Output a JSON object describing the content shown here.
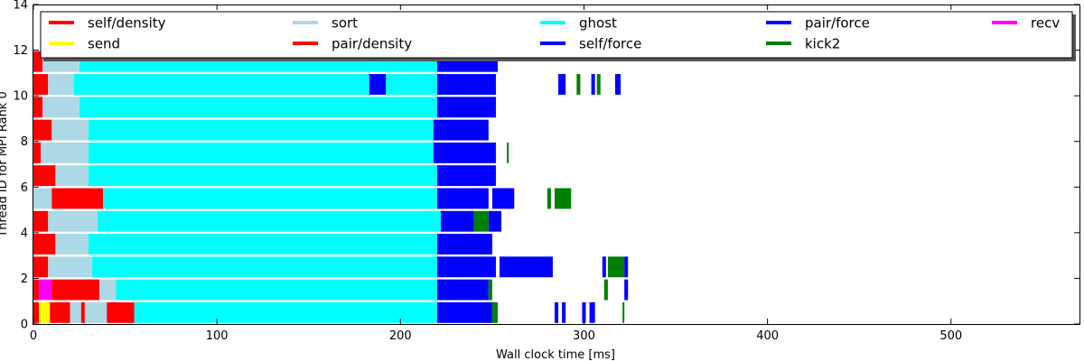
{
  "chart_data": {
    "type": "bar",
    "subtype": "task-timeline",
    "title": "",
    "xlabel": "Wall clock time [ms]",
    "ylabel": "Thread ID for MPI Rank 0",
    "xlim": [
      0,
      570
    ],
    "ylim": [
      0,
      14
    ],
    "xticks": [
      0,
      100,
      200,
      300,
      400,
      500
    ],
    "yticks": [
      0,
      2,
      4,
      6,
      8,
      10,
      12,
      14
    ],
    "grid": false,
    "legend_position": "top",
    "legend": [
      {
        "key": "self_density",
        "name": "self/density",
        "color": "#ff0000"
      },
      {
        "key": "sort",
        "name": "sort",
        "color": "#add8e6"
      },
      {
        "key": "ghost",
        "name": "ghost",
        "color": "#00ffff"
      },
      {
        "key": "pair_force",
        "name": "pair/force",
        "color": "#0000ff"
      },
      {
        "key": "recv",
        "name": "recv",
        "color": "#ff00ff"
      },
      {
        "key": "send",
        "name": "send",
        "color": "#ffff00"
      },
      {
        "key": "pair_density",
        "name": "pair/density",
        "color": "#ff0000"
      },
      {
        "key": "self_force",
        "name": "self/force",
        "color": "#0000ff"
      },
      {
        "key": "kick2",
        "name": "kick2",
        "color": "#008000"
      }
    ],
    "series": [
      {
        "thread": 0,
        "spans": [
          {
            "task": "self_density",
            "start": 0,
            "end": 3
          },
          {
            "task": "send",
            "start": 3,
            "end": 9
          },
          {
            "task": "self_density",
            "start": 9,
            "end": 20
          },
          {
            "task": "sort",
            "start": 20,
            "end": 26
          },
          {
            "task": "self_density",
            "start": 26,
            "end": 28
          },
          {
            "task": "sort",
            "start": 28,
            "end": 40
          },
          {
            "task": "self_density",
            "start": 40,
            "end": 55
          },
          {
            "task": "ghost",
            "start": 55,
            "end": 220
          },
          {
            "task": "pair_force",
            "start": 220,
            "end": 250
          },
          {
            "task": "kick2",
            "start": 250,
            "end": 253
          },
          {
            "task": "pair_force",
            "start": 284,
            "end": 286
          },
          {
            "task": "pair_force",
            "start": 288,
            "end": 290
          },
          {
            "task": "pair_force",
            "start": 299,
            "end": 301
          },
          {
            "task": "pair_force",
            "start": 303,
            "end": 306
          },
          {
            "task": "kick2",
            "start": 321,
            "end": 322
          }
        ]
      },
      {
        "thread": 1,
        "spans": [
          {
            "task": "self_density",
            "start": 0,
            "end": 3
          },
          {
            "task": "recv",
            "start": 3,
            "end": 10
          },
          {
            "task": "self_density",
            "start": 10,
            "end": 36
          },
          {
            "task": "sort",
            "start": 36,
            "end": 45
          },
          {
            "task": "ghost",
            "start": 45,
            "end": 220
          },
          {
            "task": "pair_force",
            "start": 220,
            "end": 248
          },
          {
            "task": "kick2",
            "start": 248,
            "end": 250
          },
          {
            "task": "kick2",
            "start": 311,
            "end": 313
          },
          {
            "task": "pair_force",
            "start": 322,
            "end": 324
          }
        ]
      },
      {
        "thread": 2,
        "spans": [
          {
            "task": "self_density",
            "start": 0,
            "end": 8
          },
          {
            "task": "sort",
            "start": 8,
            "end": 32
          },
          {
            "task": "ghost",
            "start": 32,
            "end": 220
          },
          {
            "task": "pair_force",
            "start": 220,
            "end": 252
          },
          {
            "task": "pair_force",
            "start": 254,
            "end": 283
          },
          {
            "task": "pair_force",
            "start": 310,
            "end": 312
          },
          {
            "task": "kick2",
            "start": 313,
            "end": 322
          },
          {
            "task": "pair_force",
            "start": 322,
            "end": 324
          }
        ]
      },
      {
        "thread": 3,
        "spans": [
          {
            "task": "self_density",
            "start": 0,
            "end": 12
          },
          {
            "task": "sort",
            "start": 12,
            "end": 30
          },
          {
            "task": "ghost",
            "start": 30,
            "end": 220
          },
          {
            "task": "pair_force",
            "start": 220,
            "end": 250
          }
        ]
      },
      {
        "thread": 4,
        "spans": [
          {
            "task": "self_density",
            "start": 0,
            "end": 8
          },
          {
            "task": "sort",
            "start": 8,
            "end": 35
          },
          {
            "task": "ghost",
            "start": 35,
            "end": 222
          },
          {
            "task": "pair_force",
            "start": 222,
            "end": 240
          },
          {
            "task": "kick2",
            "start": 240,
            "end": 248
          },
          {
            "task": "pair_force",
            "start": 248,
            "end": 255
          }
        ]
      },
      {
        "thread": 5,
        "spans": [
          {
            "task": "sort",
            "start": 0,
            "end": 10
          },
          {
            "task": "self_density",
            "start": 10,
            "end": 38
          },
          {
            "task": "ghost",
            "start": 38,
            "end": 220
          },
          {
            "task": "pair_force",
            "start": 220,
            "end": 248
          },
          {
            "task": "pair_force",
            "start": 250,
            "end": 262
          },
          {
            "task": "kick2",
            "start": 280,
            "end": 282
          },
          {
            "task": "kick2",
            "start": 284,
            "end": 293
          }
        ]
      },
      {
        "thread": 6,
        "spans": [
          {
            "task": "self_density",
            "start": 0,
            "end": 12
          },
          {
            "task": "sort",
            "start": 12,
            "end": 30
          },
          {
            "task": "ghost",
            "start": 30,
            "end": 220
          },
          {
            "task": "pair_force",
            "start": 220,
            "end": 252
          }
        ]
      },
      {
        "thread": 7,
        "spans": [
          {
            "task": "self_density",
            "start": 0,
            "end": 4
          },
          {
            "task": "sort",
            "start": 4,
            "end": 30
          },
          {
            "task": "ghost",
            "start": 30,
            "end": 218
          },
          {
            "task": "pair_force",
            "start": 218,
            "end": 252
          },
          {
            "task": "kick2",
            "start": 258,
            "end": 259
          }
        ]
      },
      {
        "thread": 8,
        "spans": [
          {
            "task": "self_density",
            "start": 0,
            "end": 10
          },
          {
            "task": "sort",
            "start": 10,
            "end": 30
          },
          {
            "task": "ghost",
            "start": 30,
            "end": 218
          },
          {
            "task": "pair_force",
            "start": 218,
            "end": 248
          }
        ]
      },
      {
        "thread": 9,
        "spans": [
          {
            "task": "self_density",
            "start": 0,
            "end": 5
          },
          {
            "task": "sort",
            "start": 5,
            "end": 25
          },
          {
            "task": "ghost",
            "start": 25,
            "end": 220
          },
          {
            "task": "pair_force",
            "start": 220,
            "end": 252
          }
        ]
      },
      {
        "thread": 10,
        "spans": [
          {
            "task": "self_density",
            "start": 0,
            "end": 8
          },
          {
            "task": "sort",
            "start": 8,
            "end": 22
          },
          {
            "task": "ghost",
            "start": 22,
            "end": 183
          },
          {
            "task": "pair_force",
            "start": 183,
            "end": 192
          },
          {
            "task": "ghost",
            "start": 192,
            "end": 220
          },
          {
            "task": "pair_force",
            "start": 220,
            "end": 252
          },
          {
            "task": "pair_force",
            "start": 286,
            "end": 290
          },
          {
            "task": "kick2",
            "start": 296,
            "end": 298
          },
          {
            "task": "pair_force",
            "start": 304,
            "end": 306
          },
          {
            "task": "kick2",
            "start": 307,
            "end": 309
          },
          {
            "task": "pair_force",
            "start": 317,
            "end": 320
          }
        ]
      },
      {
        "thread": 11,
        "spans": [
          {
            "task": "self_density",
            "start": 0,
            "end": 5
          },
          {
            "task": "sort",
            "start": 5,
            "end": 25
          },
          {
            "task": "ghost",
            "start": 25,
            "end": 220
          },
          {
            "task": "pair_force",
            "start": 220,
            "end": 253
          }
        ]
      }
    ]
  }
}
